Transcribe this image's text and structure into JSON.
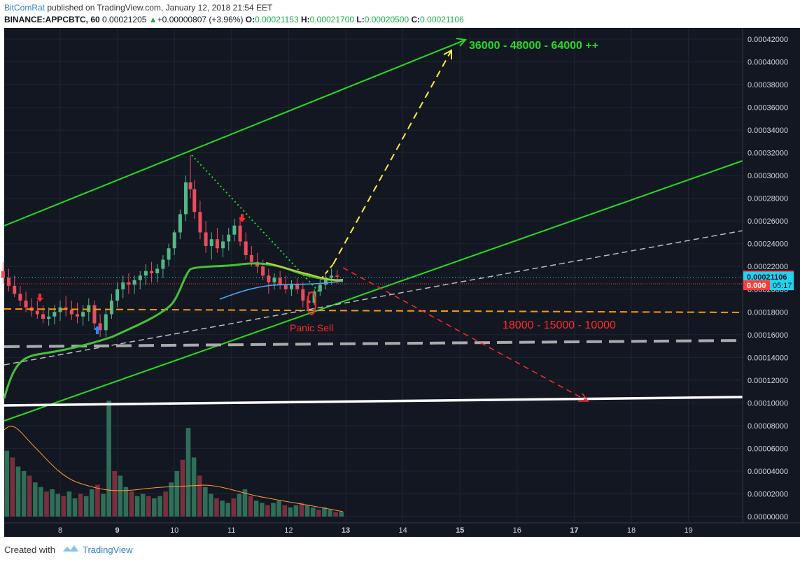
{
  "header": {
    "author": "BitComRat",
    "published_text": " published on TradingView.com, January 12, 2018 21:54 EET",
    "symbol": "BINANCE:APPCBTC, 60",
    "last": "0.00021205",
    "change": "+0.00000807 (+3.96%)",
    "o_label": "O:",
    "o": "0.00021153",
    "h_label": "H:",
    "h": "0.00021700",
    "l_label": "L:",
    "l": "0.00020500",
    "c_label": "C:",
    "c": "0.00021106"
  },
  "footer": {
    "created_with": "Created with",
    "brand": "TradingView"
  },
  "colors": {
    "background": "#131722",
    "grid": "#1f2532",
    "up_candle": "#53b987",
    "down_candle": "#eb4d5c",
    "channel": "#22dd22",
    "yellow": "#ffee33",
    "red_arrow": "#ff2a2a",
    "orange_support": "#ff9900",
    "grey_line": "#bbbbbb",
    "white_support": "#ffffff",
    "price_label": "#ff3b3b",
    "price_label_close": "#22d3ee"
  },
  "chart_data": {
    "type": "candlestick",
    "title": "",
    "x_ticks": [
      "8",
      "9",
      "10",
      "11",
      "12",
      "13",
      "14",
      "15",
      "16",
      "17",
      "18",
      "19"
    ],
    "y_ticks": [
      "0.00042000",
      "0.00040000",
      "0.00038000",
      "0.00036000",
      "0.00034000",
      "0.00032000",
      "0.00030000",
      "0.00028000",
      "0.00026000",
      "0.00024000",
      "0.00022000",
      "0.00020000",
      "0.00018000",
      "0.00016000",
      "0.00014000",
      "0.00012000",
      "0.00010000",
      "0.00008000",
      "0.00006000",
      "0.00004000",
      "0.00002000",
      "0.00000000"
    ],
    "y_range": [
      0.0,
      0.00042
    ],
    "price_labels": [
      {
        "text": "0.00021205",
        "value": 0.00021205,
        "color": "red"
      },
      {
        "text": "0.00021106",
        "value": 0.00021106,
        "color": "cyan"
      },
      {
        "text": "0.000",
        "value": 0.0002035,
        "color": "red",
        "countdown": "05:17"
      }
    ],
    "annotations": {
      "target_up": "36000 - 48000 - 64000 ++",
      "target_down": "18000 - 15000 - 10000",
      "panic": "Panic Sell"
    },
    "series_ohlc_approx": [
      [
        7.0,
        0.000216,
        0.000224,
        0.000205,
        0.00021
      ],
      [
        7.1,
        0.00021,
        0.000218,
        0.000198,
        0.000203
      ],
      [
        7.2,
        0.000203,
        0.000212,
        0.000193,
        0.000196
      ],
      [
        7.3,
        0.000196,
        0.000203,
        0.000185,
        0.00019
      ],
      [
        7.4,
        0.00019,
        0.000198,
        0.00018,
        0.000184
      ],
      [
        7.5,
        0.000184,
        0.000192,
        0.000176,
        0.000181
      ],
      [
        7.6,
        0.000181,
        0.00019,
        0.000174,
        0.000178
      ],
      [
        7.7,
        0.000178,
        0.000186,
        0.00017,
        0.000174
      ],
      [
        7.8,
        0.000174,
        0.000184,
        0.000168,
        0.000176
      ],
      [
        7.9,
        0.000176,
        0.000186,
        0.000169,
        0.00018
      ],
      [
        8.0,
        0.00018,
        0.00019,
        0.000172,
        0.000184
      ],
      [
        8.1,
        0.000184,
        0.000194,
        0.000176,
        0.000182
      ],
      [
        8.2,
        0.000182,
        0.00019,
        0.000173,
        0.000178
      ],
      [
        8.3,
        0.000178,
        0.000188,
        0.00017,
        0.000176
      ],
      [
        8.4,
        0.000176,
        0.000186,
        0.000168,
        0.00018
      ],
      [
        8.5,
        0.00018,
        0.000192,
        0.000172,
        0.000186
      ],
      [
        8.6,
        0.000186,
        0.00019,
        0.000165,
        0.00017
      ],
      [
        8.7,
        0.00017,
        0.000178,
        0.000158,
        0.000164
      ],
      [
        8.8,
        0.000164,
        0.000182,
        0.000158,
        0.000178
      ],
      [
        8.9,
        0.000178,
        0.000196,
        0.000174,
        0.00019
      ],
      [
        9.0,
        0.00019,
        0.000206,
        0.000184,
        0.0002
      ],
      [
        9.1,
        0.0002,
        0.000212,
        0.000192,
        0.000206
      ],
      [
        9.2,
        0.000206,
        0.000214,
        0.000196,
        0.000204
      ],
      [
        9.3,
        0.000204,
        0.000212,
        0.000196,
        0.000208
      ],
      [
        9.4,
        0.000208,
        0.000216,
        0.0002,
        0.000212
      ],
      [
        9.5,
        0.000212,
        0.000222,
        0.000204,
        0.000216
      ],
      [
        9.6,
        0.000216,
        0.000224,
        0.000206,
        0.000214
      ],
      [
        9.7,
        0.000214,
        0.000222,
        0.000206,
        0.000218
      ],
      [
        9.8,
        0.000218,
        0.00023,
        0.00021,
        0.000226
      ],
      [
        9.9,
        0.000226,
        0.00024,
        0.00022,
        0.000236
      ],
      [
        10.0,
        0.000236,
        0.000252,
        0.00023,
        0.00025
      ],
      [
        10.1,
        0.00025,
        0.00027,
        0.000244,
        0.000266
      ],
      [
        10.2,
        0.000266,
        0.0003,
        0.00026,
        0.000294
      ],
      [
        10.28,
        0.000294,
        0.000318,
        0.00028,
        0.000288
      ],
      [
        10.35,
        0.000288,
        0.000296,
        0.000262,
        0.000268
      ],
      [
        10.45,
        0.000268,
        0.000278,
        0.000244,
        0.00025
      ],
      [
        10.55,
        0.00025,
        0.00026,
        0.000232,
        0.000238
      ],
      [
        10.65,
        0.000238,
        0.00025,
        0.000226,
        0.000244
      ],
      [
        10.75,
        0.000244,
        0.000254,
        0.000232,
        0.000236
      ],
      [
        10.85,
        0.000236,
        0.000248,
        0.000228,
        0.000242
      ],
      [
        10.95,
        0.000242,
        0.000254,
        0.000234,
        0.000248
      ],
      [
        11.05,
        0.000248,
        0.000262,
        0.000242,
        0.000256
      ],
      [
        11.15,
        0.000256,
        0.000264,
        0.000238,
        0.000242
      ],
      [
        11.25,
        0.000242,
        0.00025,
        0.000226,
        0.00023
      ],
      [
        11.35,
        0.00023,
        0.000238,
        0.00022,
        0.000224
      ],
      [
        11.45,
        0.000224,
        0.000232,
        0.000214,
        0.00022
      ],
      [
        11.55,
        0.00022,
        0.000226,
        0.000208,
        0.000212
      ],
      [
        11.65,
        0.000212,
        0.000218,
        0.000196,
        0.000206
      ],
      [
        11.75,
        0.000206,
        0.000214,
        0.0002,
        0.00021
      ],
      [
        11.85,
        0.00021,
        0.000216,
        0.0002,
        0.000204
      ],
      [
        11.95,
        0.000204,
        0.000212,
        0.000196,
        0.0002
      ],
      [
        12.05,
        0.0002,
        0.000208,
        0.000194,
        0.000204
      ],
      [
        12.15,
        0.000204,
        0.00021,
        0.000196,
        0.0002
      ],
      [
        12.25,
        0.0002,
        0.000206,
        0.000184,
        0.00019
      ],
      [
        12.35,
        0.00019,
        0.000198,
        0.000178,
        0.000188
      ],
      [
        12.45,
        0.000188,
        0.0002,
        0.000186,
        0.000198
      ],
      [
        12.55,
        0.000198,
        0.000208,
        0.000194,
        0.000204
      ],
      [
        12.65,
        0.000204,
        0.000214,
        0.0002,
        0.00021
      ],
      [
        12.75,
        0.00021,
        0.000218,
        0.000204,
        0.000212
      ],
      [
        12.85,
        0.000212,
        0.000217,
        0.000205,
        0.000211
      ]
    ],
    "volume_approx": [
      5.8e-05,
      5.2e-05,
      4.4e-05,
      4e-05,
      3.6e-05,
      3e-05,
      2.6e-05,
      2.2e-05,
      2.4e-05,
      2e-05,
      1.8e-05,
      2.2e-05,
      1.6e-05,
      2e-05,
      1.8e-05,
      2.4e-05,
      2.8e-05,
      2e-05,
      0.000102,
      4e-05,
      3.6e-05,
      2.6e-05,
      2.2e-05,
      1.8e-05,
      2e-05,
      1.8e-05,
      1.6e-05,
      1.8e-05,
      2.2e-05,
      3e-05,
      4e-05,
      5e-05,
      7.8e-05,
      5.2e-05,
      3.6e-05,
      2.6e-05,
      2e-05,
      1.6e-05,
      1.4e-05,
      1.2e-05,
      1.6e-05,
      2e-05,
      2.4e-05,
      1.8e-05,
      1.4e-05,
      1.2e-05,
      1e-05,
      1.2e-05,
      1.4e-05,
      1e-05,
      8e-06,
      1e-05,
      1.2e-05,
      1e-05,
      8e-06,
      6e-06,
      8e-06,
      6e-06,
      4e-06,
      4e-06
    ]
  }
}
